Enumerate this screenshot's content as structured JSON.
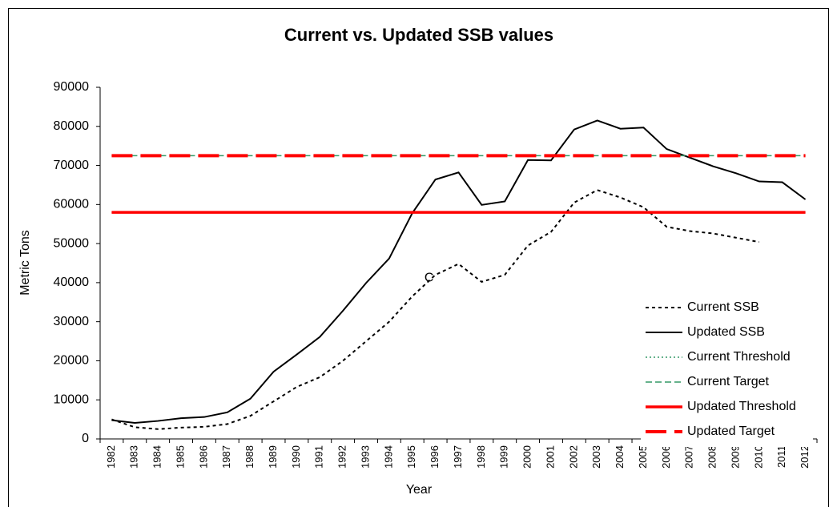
{
  "chart_data": {
    "type": "line",
    "title": "Current vs. Updated SSB values",
    "xlabel": "Year",
    "ylabel": "Metric Tons",
    "categories": [
      "1982",
      "1983",
      "1984",
      "1985",
      "1986",
      "1987",
      "1988",
      "1989",
      "1990",
      "1991",
      "1992",
      "1993",
      "1994",
      "1995",
      "1996",
      "1997",
      "1998",
      "1999",
      "2000",
      "2001",
      "2002",
      "2003",
      "2004",
      "2005",
      "2006",
      "2007",
      "2008",
      "2009",
      "2010",
      "2011",
      "2012"
    ],
    "series": [
      {
        "name": "Current SSB",
        "color": "#000000",
        "dash": "4,4",
        "width": 2,
        "values": [
          5000,
          3000,
          2500,
          2900,
          3100,
          3800,
          5900,
          9600,
          13300,
          15800,
          20000,
          25000,
          30000,
          36500,
          42000,
          44800,
          40200,
          42000,
          49500,
          53000,
          60500,
          63700,
          61800,
          59300,
          54300,
          53200,
          52600,
          51500,
          50400,
          null,
          null
        ]
      },
      {
        "name": "Updated SSB",
        "color": "#000000",
        "dash": "none",
        "width": 2,
        "values": [
          4800,
          4100,
          4600,
          5300,
          5600,
          6800,
          10300,
          17200,
          21600,
          26100,
          32800,
          39900,
          46200,
          57800,
          66400,
          68200,
          59900,
          60800,
          71400,
          71300,
          79200,
          81500,
          79400,
          79700,
          74200,
          72000,
          69800,
          68000,
          65900,
          65700,
          61300
        ]
      },
      {
        "name": "Current Threshold",
        "color": "#339966",
        "dash": "2,3",
        "width": 1.5,
        "values": [
          58000,
          58000,
          58000,
          58000,
          58000,
          58000,
          58000,
          58000,
          58000,
          58000,
          58000,
          58000,
          58000,
          58000,
          58000,
          58000,
          58000,
          58000,
          58000,
          58000,
          58000,
          58000,
          58000,
          58000,
          58000,
          58000,
          58000,
          58000,
          58000,
          58000,
          58000
        ]
      },
      {
        "name": "Current Target",
        "color": "#339966",
        "dash": "8,4",
        "width": 1.5,
        "values": [
          72500,
          72500,
          72500,
          72500,
          72500,
          72500,
          72500,
          72500,
          72500,
          72500,
          72500,
          72500,
          72500,
          72500,
          72500,
          72500,
          72500,
          72500,
          72500,
          72500,
          72500,
          72500,
          72500,
          72500,
          72500,
          72500,
          72500,
          72500,
          72500,
          72500,
          72500
        ]
      },
      {
        "name": "Updated Threshold",
        "color": "#ff0000",
        "dash": "none",
        "width": 3.5,
        "values": [
          58000,
          58000,
          58000,
          58000,
          58000,
          58000,
          58000,
          58000,
          58000,
          58000,
          58000,
          58000,
          58000,
          58000,
          58000,
          58000,
          58000,
          58000,
          58000,
          58000,
          58000,
          58000,
          58000,
          58000,
          58000,
          58000,
          58000,
          58000,
          58000,
          58000,
          58000
        ]
      },
      {
        "name": "Updated Target",
        "color": "#ff0000",
        "dash": "26,10",
        "width": 4,
        "values": [
          72500,
          72500,
          72500,
          72500,
          72500,
          72500,
          72500,
          72500,
          72500,
          72500,
          72500,
          72500,
          72500,
          72500,
          72500,
          72500,
          72500,
          72500,
          72500,
          72500,
          72500,
          72500,
          72500,
          72500,
          72500,
          72500,
          72500,
          72500,
          72500,
          72500,
          72500
        ]
      }
    ],
    "annotations": [
      {
        "text": "C",
        "x": "1996",
        "y": 42000
      }
    ],
    "ylim": [
      0,
      90000
    ],
    "yticks": [
      0,
      10000,
      20000,
      30000,
      40000,
      50000,
      60000,
      70000,
      80000,
      90000
    ],
    "grid": false,
    "legend": "lower right"
  }
}
